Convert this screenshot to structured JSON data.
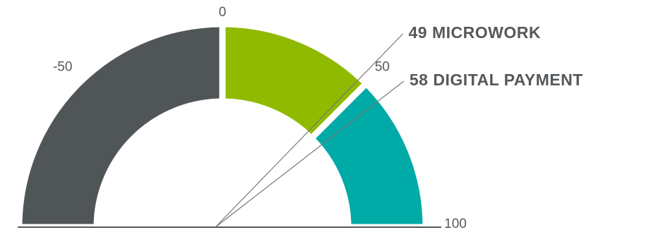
{
  "chart_data": {
    "type": "gauge",
    "lim": [
      -100,
      100
    ],
    "ticks": [
      -50,
      0,
      50,
      100
    ],
    "bands": [
      {
        "from": -100,
        "to": 0,
        "color": "#505558"
      },
      {
        "from": 0,
        "to": 50,
        "color": "#8fba00"
      },
      {
        "from": 50,
        "to": 100,
        "color": "#00aaa6"
      }
    ],
    "markers": [
      {
        "value": 49,
        "label": "MICROWORK"
      },
      {
        "value": 58,
        "label": "DIGITAL PAYMENT"
      }
    ]
  }
}
